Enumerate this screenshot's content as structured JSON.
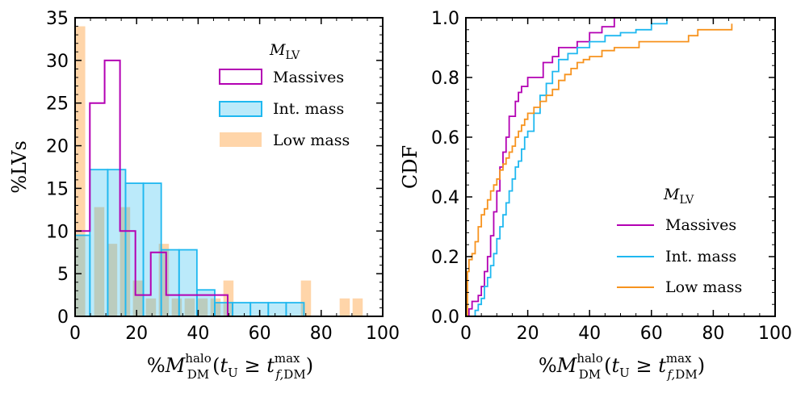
{
  "chart_data": [
    {
      "type": "histogram",
      "xlabel": "%M_DM^halo(t_U ≥ t_f,DM^max)",
      "ylabel": "%LVs",
      "xlim": [
        0,
        100
      ],
      "ylim": [
        0,
        35
      ],
      "xticks": [
        "0",
        "20",
        "40",
        "60",
        "80",
        "100"
      ],
      "yticks": [
        "0",
        "5",
        "10",
        "15",
        "20",
        "25",
        "30",
        "35"
      ],
      "legend": {
        "title": "M_LV",
        "position": "top-right",
        "entries": [
          "Massives",
          "Int. mass",
          "Low mass"
        ]
      },
      "series": [
        {
          "name": "Massives",
          "style": "step",
          "color": "#b300b3",
          "edges": [
            0,
            4.8,
            9.6,
            14.6,
            19.6,
            24.6,
            29.6,
            34.6,
            39.6,
            44.6,
            49.6
          ],
          "values": [
            10,
            25,
            30,
            10,
            2.5,
            7.5,
            2.5,
            2.5,
            2.5,
            2.5
          ]
        },
        {
          "name": "Int. mass",
          "style": "filled-step",
          "color": "#1fb8f0",
          "edges": [
            0,
            4.8,
            10.6,
            16.4,
            22.2,
            28,
            33.8,
            39.6,
            45.4,
            51.2,
            57,
            62.8,
            68.6,
            74.4
          ],
          "values": [
            9.5,
            17.2,
            17.2,
            15.6,
            15.6,
            7.8,
            7.8,
            3.1,
            1.6,
            1.6,
            1.6,
            1.6,
            1.6
          ]
        },
        {
          "name": "Low mass",
          "style": "bars",
          "color": "#ffca94",
          "bar_width": 3.3,
          "x": [
            0,
            6.2,
            10.4,
            14.6,
            18.8,
            23,
            27.2,
            31.4,
            35.6,
            39.8,
            44,
            48.2,
            52.4,
            56.6,
            60.8,
            65,
            69.2,
            73.4,
            77.6,
            81.8,
            86,
            90.2
          ],
          "values": [
            34,
            12.8,
            8.5,
            12.8,
            4.2,
            2.1,
            8.5,
            2.1,
            2.1,
            2.1,
            2.1,
            4.2,
            0,
            0,
            0,
            0,
            0,
            4.2,
            0,
            0,
            2.1,
            2.1
          ]
        }
      ]
    },
    {
      "type": "line",
      "xlabel": "%M_DM^halo(t_U ≥ t_f,DM^max)",
      "ylabel": "CDF",
      "xlim": [
        0,
        100
      ],
      "ylim": [
        0,
        1
      ],
      "xticks": [
        "0",
        "20",
        "40",
        "60",
        "80",
        "100"
      ],
      "yticks": [
        "0.0",
        "0.2",
        "0.4",
        "0.6",
        "0.8",
        "1.0"
      ],
      "legend": {
        "title": "M_LV",
        "position": "lower-right",
        "entries": [
          "Massives",
          "Int. mass",
          "Low mass"
        ]
      },
      "series": [
        {
          "name": "Massives",
          "color": "#b300b3",
          "x": [
            0,
            1,
            2,
            3,
            4,
            5,
            6,
            7,
            8,
            9,
            10,
            11,
            12,
            13,
            14,
            15,
            16,
            17,
            18,
            20,
            22,
            25,
            28,
            30,
            33,
            36,
            40,
            44,
            48
          ],
          "y": [
            0,
            0.025,
            0.05,
            0.05,
            0.07,
            0.1,
            0.15,
            0.2,
            0.27,
            0.35,
            0.42,
            0.5,
            0.55,
            0.6,
            0.67,
            0.67,
            0.72,
            0.75,
            0.77,
            0.8,
            0.8,
            0.85,
            0.87,
            0.9,
            0.9,
            0.92,
            0.95,
            0.97,
            1.0
          ]
        },
        {
          "name": "Int. mass",
          "color": "#1fb8f0",
          "x": [
            0,
            2,
            3,
            4,
            5,
            6,
            7,
            8,
            9,
            10,
            11,
            12,
            13,
            14,
            15,
            16,
            17,
            18,
            19,
            20,
            22,
            24,
            26,
            28,
            30,
            33,
            36,
            40,
            45,
            50,
            55,
            60,
            65
          ],
          "y": [
            0,
            0,
            0.02,
            0.04,
            0.06,
            0.1,
            0.13,
            0.17,
            0.21,
            0.26,
            0.3,
            0.34,
            0.38,
            0.42,
            0.46,
            0.5,
            0.52,
            0.56,
            0.6,
            0.62,
            0.68,
            0.74,
            0.78,
            0.82,
            0.86,
            0.88,
            0.9,
            0.92,
            0.94,
            0.95,
            0.96,
            0.98,
            1.0
          ]
        },
        {
          "name": "Low mass",
          "color": "#f7931e",
          "x": [
            0,
            0.5,
            1,
            2,
            3,
            4,
            5,
            6,
            7,
            8,
            9,
            10,
            11,
            12,
            13,
            14,
            15,
            16,
            17,
            18,
            19,
            20,
            22,
            24,
            26,
            28,
            30,
            32,
            34,
            36,
            38,
            40,
            44,
            48,
            56,
            72,
            75,
            86
          ],
          "y": [
            0,
            0.15,
            0.19,
            0.21,
            0.25,
            0.3,
            0.34,
            0.36,
            0.39,
            0.42,
            0.44,
            0.46,
            0.49,
            0.51,
            0.53,
            0.55,
            0.57,
            0.6,
            0.62,
            0.64,
            0.66,
            0.68,
            0.7,
            0.72,
            0.74,
            0.76,
            0.79,
            0.81,
            0.83,
            0.85,
            0.86,
            0.87,
            0.89,
            0.9,
            0.92,
            0.94,
            0.96,
            0.98
          ]
        }
      ]
    }
  ]
}
